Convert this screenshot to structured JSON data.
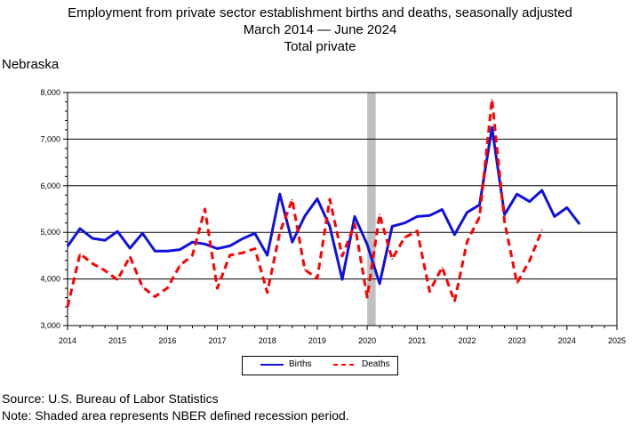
{
  "header": {
    "title_line1": "Employment from private sector establishment births and deaths, seasonally adjusted",
    "title_line2": "March 2014 — June 2024",
    "title_line3": "Total private",
    "region": "Nebraska"
  },
  "footer": {
    "source": "Source: U.S. Bureau of Labor Statistics",
    "note": "Note: Shaded area represents NBER defined recession period."
  },
  "chart_data": {
    "type": "line",
    "title": "Employment from private sector establishment births and deaths, seasonally adjusted",
    "subtitle": "March 2014 — June 2024",
    "xlim": [
      2014,
      2025
    ],
    "ylim": [
      3000,
      8000
    ],
    "x_ticks": [
      "2014",
      "2015",
      "2016",
      "2017",
      "2018",
      "2019",
      "2020",
      "2021",
      "2022",
      "2023",
      "2024",
      "2025"
    ],
    "y_ticks": [
      "3,000",
      "4,000",
      "5,000",
      "6,000",
      "7,000",
      "8,000"
    ],
    "grid": "horizontal",
    "legend_position": "bottom",
    "recession_shading": [
      2020.0,
      2020.17
    ],
    "series": [
      {
        "name": "Births",
        "color": "#1010e0",
        "style": "solid",
        "points": [
          [
            2014.0,
            4700
          ],
          [
            2014.25,
            5080
          ],
          [
            2014.5,
            4870
          ],
          [
            2014.75,
            4830
          ],
          [
            2015.0,
            5020
          ],
          [
            2015.25,
            4660
          ],
          [
            2015.5,
            4980
          ],
          [
            2015.75,
            4600
          ],
          [
            2016.0,
            4600
          ],
          [
            2016.25,
            4630
          ],
          [
            2016.5,
            4790
          ],
          [
            2016.75,
            4750
          ],
          [
            2017.0,
            4650
          ],
          [
            2017.25,
            4710
          ],
          [
            2017.5,
            4860
          ],
          [
            2017.75,
            4980
          ],
          [
            2018.0,
            4510
          ],
          [
            2018.25,
            5820
          ],
          [
            2018.5,
            4790
          ],
          [
            2018.75,
            5350
          ],
          [
            2019.0,
            5720
          ],
          [
            2019.25,
            5130
          ],
          [
            2019.5,
            3990
          ],
          [
            2019.75,
            5340
          ],
          [
            2020.0,
            4740
          ],
          [
            2020.25,
            3900
          ],
          [
            2020.5,
            5130
          ],
          [
            2020.75,
            5200
          ],
          [
            2021.0,
            5340
          ],
          [
            2021.25,
            5360
          ],
          [
            2021.5,
            5490
          ],
          [
            2021.75,
            4950
          ],
          [
            2022.0,
            5430
          ],
          [
            2022.25,
            5590
          ],
          [
            2022.5,
            7250
          ],
          [
            2022.75,
            5380
          ],
          [
            2023.0,
            5820
          ],
          [
            2023.25,
            5660
          ],
          [
            2023.5,
            5900
          ],
          [
            2023.75,
            5340
          ],
          [
            2024.0,
            5530
          ],
          [
            2024.25,
            5180
          ]
        ]
      },
      {
        "name": "Deaths",
        "color": "#ff0000",
        "style": "dashed",
        "points": [
          [
            2014.0,
            3400
          ],
          [
            2014.25,
            4540
          ],
          [
            2014.5,
            4330
          ],
          [
            2014.75,
            4180
          ],
          [
            2015.0,
            3980
          ],
          [
            2015.25,
            4480
          ],
          [
            2015.5,
            3830
          ],
          [
            2015.75,
            3620
          ],
          [
            2016.0,
            3810
          ],
          [
            2016.25,
            4290
          ],
          [
            2016.5,
            4510
          ],
          [
            2016.75,
            5500
          ],
          [
            2017.0,
            3800
          ],
          [
            2017.25,
            4510
          ],
          [
            2017.5,
            4560
          ],
          [
            2017.75,
            4650
          ],
          [
            2018.0,
            3710
          ],
          [
            2018.25,
            5000
          ],
          [
            2018.5,
            5700
          ],
          [
            2018.75,
            4200
          ],
          [
            2019.0,
            4010
          ],
          [
            2019.25,
            5710
          ],
          [
            2019.5,
            4490
          ],
          [
            2019.75,
            5180
          ],
          [
            2020.0,
            3610
          ],
          [
            2020.25,
            5380
          ],
          [
            2020.5,
            4430
          ],
          [
            2020.75,
            4890
          ],
          [
            2021.0,
            5030
          ],
          [
            2021.25,
            3730
          ],
          [
            2021.5,
            4250
          ],
          [
            2021.75,
            3520
          ],
          [
            2022.0,
            4800
          ],
          [
            2022.25,
            5330
          ],
          [
            2022.5,
            7850
          ],
          [
            2022.75,
            5230
          ],
          [
            2023.0,
            3910
          ],
          [
            2023.25,
            4390
          ],
          [
            2023.5,
            5050
          ]
        ]
      }
    ]
  }
}
